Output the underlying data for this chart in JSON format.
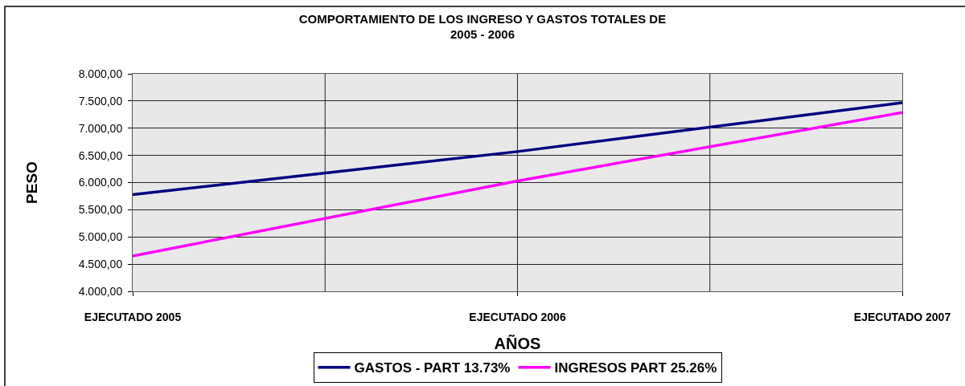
{
  "chart_data": {
    "type": "line",
    "title": "COMPORTAMIENTO DE LOS INGRESO Y GASTOS TOTALES DE\n2005 - 2006",
    "xlabel": "AÑOS",
    "ylabel": "PESO",
    "categories": [
      "EJECUTADO 2005",
      "EJECUTADO 2006",
      "EJECUTADO 2007"
    ],
    "series": [
      {
        "name": "GASTOS - PART 13.73%",
        "color": "#000080",
        "values": [
          5780,
          6570,
          7470
        ]
      },
      {
        "name": "INGRESOS PART 25.26%",
        "color": "#ff00ff",
        "values": [
          4650,
          6030,
          7290
        ]
      }
    ],
    "ylim": [
      4000,
      8000
    ],
    "yticks": [
      {
        "value": 4000,
        "label": "4.000,00"
      },
      {
        "value": 4500,
        "label": "4.500,00"
      },
      {
        "value": 5000,
        "label": "5.000,00"
      },
      {
        "value": 5500,
        "label": "5.500,00"
      },
      {
        "value": 6000,
        "label": "6.000,00"
      },
      {
        "value": 6500,
        "label": "6.500,00"
      },
      {
        "value": 7000,
        "label": "7.000,00"
      },
      {
        "value": 7500,
        "label": "7.500,00"
      },
      {
        "value": 8000,
        "label": "8.000,00"
      }
    ],
    "grid": true,
    "legend": "bottom",
    "marker": "none",
    "line_style": "solid"
  }
}
